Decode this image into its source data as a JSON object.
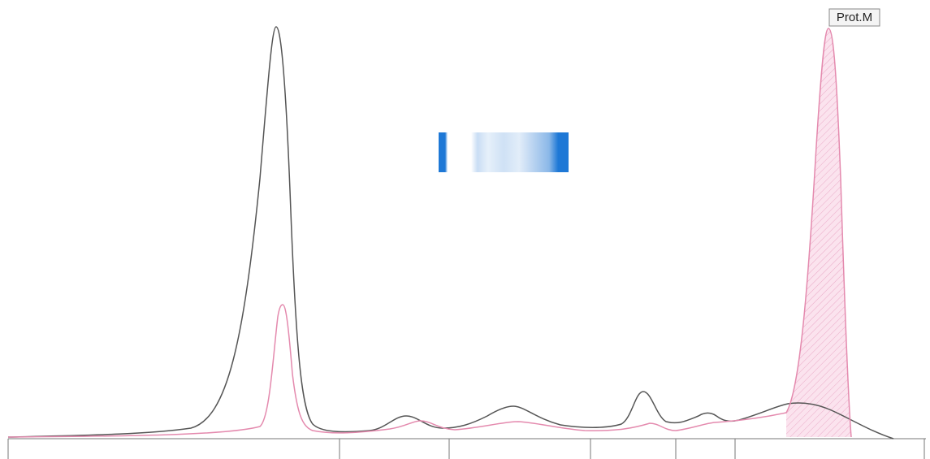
{
  "annotation": "Prot.M"
}
